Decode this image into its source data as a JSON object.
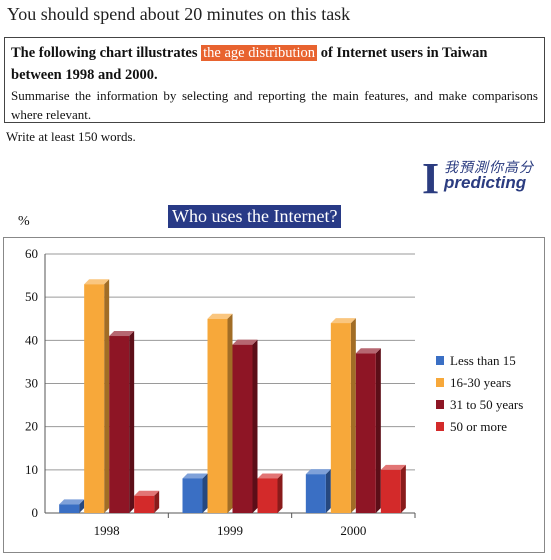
{
  "header": {
    "instruction": "You should spend about 20 minutes on this task"
  },
  "task": {
    "line1_pre": "The following chart illustrates",
    "line1_highlight": "the age distribution",
    "line1_post": "of Internet users in Taiwan",
    "line2": "between 1998 and 2000.",
    "summary": "Summarise the information by selecting and reporting the main features, and make comparisons where relevant.",
    "write": "Write at least 150 words."
  },
  "logo": {
    "chinese": "我預測你高分",
    "letter": "I",
    "word": "predicting"
  },
  "chart_data": {
    "type": "bar",
    "title": "Who uses the Internet?",
    "ylabel": "%",
    "xlabel": "",
    "categories": [
      "1998",
      "1999",
      "2000"
    ],
    "ylim": [
      0,
      60
    ],
    "yticks": [
      0,
      10,
      20,
      30,
      40,
      50,
      60
    ],
    "grid": true,
    "legend_position": "right",
    "series": [
      {
        "name": "Less than 15",
        "values": [
          2,
          8,
          9
        ],
        "color": "#3a6fc4"
      },
      {
        "name": "16-30 years",
        "values": [
          53,
          45,
          44
        ],
        "color": "#f7a83a"
      },
      {
        "name": "31 to 50 years",
        "values": [
          41,
          39,
          37
        ],
        "color": "#8e1525"
      },
      {
        "name": "50 or more",
        "values": [
          4,
          8,
          10
        ],
        "color": "#d32a2a"
      }
    ]
  },
  "colors": {
    "highlight": "#e8632f",
    "title_background": "#283a86"
  }
}
